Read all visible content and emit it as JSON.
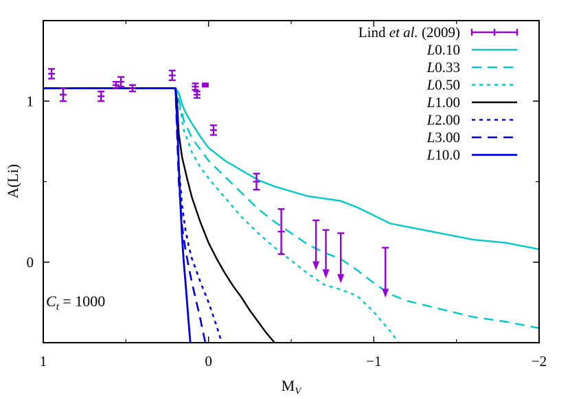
{
  "chart_data": {
    "type": "line",
    "xlabel": "M",
    "xlabel_sub": "V",
    "ylabel": "A(Li)",
    "xlim": [
      1,
      -2
    ],
    "ylim": [
      -0.5,
      1.5
    ],
    "x_ticks": [
      1,
      0,
      -1,
      -2
    ],
    "x_tick_labels": [
      "1",
      "0",
      "−1",
      "−2"
    ],
    "y_ticks": [
      1,
      0
    ],
    "y_tick_labels": [
      "1",
      "0"
    ],
    "legend_placement": "top-right",
    "annotation": {
      "prefix": "C",
      "sub": "t",
      "suffix": " = 1000"
    },
    "observations": {
      "name": "Lind et al. (2009)",
      "name_parts": [
        "Lind ",
        "et al.",
        " (2009)"
      ],
      "color": "#9400d3",
      "points": [
        {
          "x": 0.95,
          "y": 1.17,
          "err": 0.03
        },
        {
          "x": 0.88,
          "y": 1.04,
          "err": 0.04
        },
        {
          "x": 0.65,
          "y": 1.03,
          "err": 0.03
        },
        {
          "x": 0.56,
          "y": 1.1,
          "err": 0.02
        },
        {
          "x": 0.53,
          "y": 1.12,
          "err": 0.03
        },
        {
          "x": 0.46,
          "y": 1.08,
          "err": 0.02
        },
        {
          "x": 0.22,
          "y": 1.16,
          "err": 0.03
        },
        {
          "x": 0.08,
          "y": 1.09,
          "err": 0.02
        },
        {
          "x": 0.07,
          "y": 1.04,
          "err": 0.02
        },
        {
          "x": 0.02,
          "y": 1.1,
          "err": 0.01
        },
        {
          "x": -0.03,
          "y": 0.82,
          "err": 0.03
        },
        {
          "x": -0.29,
          "y": 0.5,
          "err": 0.05
        },
        {
          "x": -0.44,
          "y": 0.19,
          "err": 0.14
        }
      ],
      "upper_limits": [
        {
          "x": -0.65,
          "y": 0.26,
          "to": -0.05
        },
        {
          "x": -0.71,
          "y": 0.2,
          "to": -0.1
        },
        {
          "x": -0.8,
          "y": 0.18,
          "to": -0.13
        },
        {
          "x": -1.07,
          "y": 0.09,
          "to": -0.22
        }
      ]
    },
    "series": [
      {
        "name": "L0.10",
        "color": "#00c8c8",
        "dash": "solid",
        "width": 2.4,
        "x": [
          1,
          0.2,
          0.18,
          0.16,
          0.14,
          0.1,
          0.05,
          0,
          -0.1,
          -0.2,
          -0.3,
          -0.4,
          -0.5,
          -0.6,
          -0.8,
          -0.9,
          -1.0,
          -1.1,
          -1.2,
          -1.4,
          -1.6,
          -1.8,
          -2.0
        ],
        "y": [
          1.08,
          1.08,
          1.05,
          0.98,
          0.93,
          0.86,
          0.78,
          0.71,
          0.63,
          0.57,
          0.51,
          0.47,
          0.44,
          0.41,
          0.38,
          0.34,
          0.29,
          0.24,
          0.22,
          0.18,
          0.14,
          0.12,
          0.08
        ]
      },
      {
        "name": "L0.33",
        "color": "#00c8c8",
        "dash": "long",
        "width": 2.4,
        "x": [
          1,
          0.2,
          0.17,
          0.15,
          0.1,
          0.05,
          0,
          -0.1,
          -0.2,
          -0.3,
          -0.4,
          -0.5,
          -0.6,
          -0.7,
          -0.8,
          -0.9,
          -1.0,
          -1.1,
          -1.2,
          -1.4,
          -1.6,
          -1.8,
          -2.0
        ],
        "y": [
          1.08,
          1.08,
          0.97,
          0.88,
          0.77,
          0.7,
          0.63,
          0.53,
          0.43,
          0.33,
          0.25,
          0.18,
          0.11,
          0.06,
          0.02,
          -0.05,
          -0.13,
          -0.2,
          -0.24,
          -0.29,
          -0.34,
          -0.37,
          -0.41
        ]
      },
      {
        "name": "L0.50",
        "color": "#00c8c8",
        "dash": "short",
        "width": 2.4,
        "x": [
          1,
          0.2,
          0.17,
          0.15,
          0.1,
          0.05,
          0,
          -0.1,
          -0.2,
          -0.3,
          -0.4,
          -0.5,
          -0.6,
          -0.7,
          -0.8,
          -0.9,
          -1.0,
          -1.1,
          -1.15
        ],
        "y": [
          1.08,
          1.08,
          0.94,
          0.82,
          0.68,
          0.59,
          0.52,
          0.4,
          0.28,
          0.18,
          0.09,
          0.01,
          -0.07,
          -0.14,
          -0.17,
          -0.21,
          -0.31,
          -0.43,
          -0.5
        ]
      },
      {
        "name": "L1.00",
        "color": "#000000",
        "dash": "solid",
        "width": 2.4,
        "x": [
          1,
          0.2,
          0.19,
          0.18,
          0.16,
          0.13,
          0.1,
          0.05,
          0,
          -0.05,
          -0.1,
          -0.15,
          -0.2,
          -0.25,
          -0.3,
          -0.35,
          -0.4
        ],
        "y": [
          1.08,
          1.08,
          1.0,
          0.8,
          0.65,
          0.52,
          0.4,
          0.25,
          0.12,
          0.02,
          -0.07,
          -0.15,
          -0.22,
          -0.3,
          -0.37,
          -0.44,
          -0.5
        ]
      },
      {
        "name": "L2.00",
        "color": "#0000e0",
        "dash": "short",
        "width": 2.6,
        "x": [
          1,
          0.2,
          0.18,
          0.16,
          0.14,
          0.12,
          0.1,
          0.05,
          0.0,
          -0.05,
          -0.08
        ],
        "y": [
          1.08,
          1.08,
          0.6,
          0.35,
          0.2,
          0.1,
          0.02,
          -0.12,
          -0.25,
          -0.4,
          -0.5
        ]
      },
      {
        "name": "L3.00",
        "color": "#0000e0",
        "dash": "long",
        "width": 2.6,
        "x": [
          1,
          0.2,
          0.18,
          0.16,
          0.14,
          0.12,
          0.1,
          0.05,
          0.02
        ],
        "y": [
          1.08,
          1.08,
          0.5,
          0.22,
          0.08,
          -0.03,
          -0.13,
          -0.35,
          -0.5
        ]
      },
      {
        "name": "L10.0",
        "color": "#0000e0",
        "dash": "solid",
        "width": 2.8,
        "x": [
          1,
          0.2,
          0.19,
          0.18,
          0.17,
          0.16,
          0.15,
          0.14,
          0.13,
          0.12,
          0.11
        ],
        "y": [
          1.08,
          1.08,
          0.9,
          0.6,
          0.35,
          0.15,
          0.0,
          -0.12,
          -0.25,
          -0.38,
          -0.5
        ]
      }
    ]
  }
}
